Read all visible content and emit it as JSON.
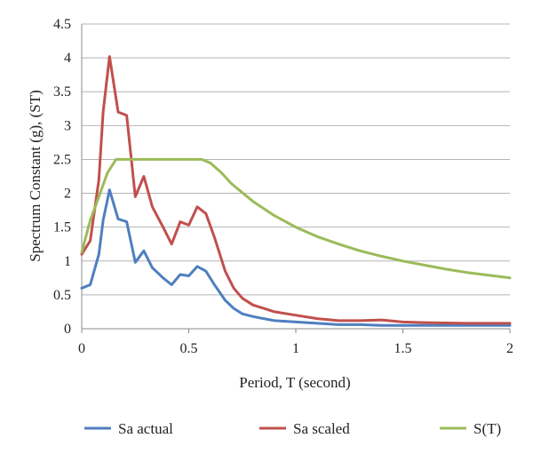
{
  "chart_data": {
    "type": "line",
    "title": "",
    "xlabel": "Period, T (second)",
    "ylabel": "Spectrum Constant (g), (ST)",
    "xlim": [
      0,
      2
    ],
    "ylim": [
      0,
      4.5
    ],
    "xticks": [
      0,
      0.5,
      1,
      1.5,
      2
    ],
    "xtick_labels": [
      "0",
      "0.5",
      "1",
      "1.5",
      "2"
    ],
    "yticks": [
      0,
      0.5,
      1,
      1.5,
      2,
      2.5,
      3,
      3.5,
      4,
      4.5
    ],
    "ytick_labels": [
      "0",
      "0.5",
      "1",
      "1.5",
      "2",
      "2.5",
      "3",
      "3.5",
      "4",
      "4.5"
    ],
    "grid": "horizontal",
    "legend": "bottom",
    "series": [
      {
        "name": "Sa actual",
        "color": "#4f7fbf",
        "x": [
          0,
          0.04,
          0.08,
          0.1,
          0.13,
          0.17,
          0.21,
          0.25,
          0.29,
          0.33,
          0.38,
          0.42,
          0.46,
          0.5,
          0.54,
          0.58,
          0.62,
          0.67,
          0.71,
          0.75,
          0.8,
          0.85,
          0.9,
          1.0,
          1.1,
          1.2,
          1.3,
          1.4,
          1.5,
          1.6,
          1.8,
          2.0
        ],
        "y": [
          0.6,
          0.65,
          1.1,
          1.6,
          2.05,
          1.62,
          1.58,
          0.98,
          1.15,
          0.9,
          0.75,
          0.65,
          0.8,
          0.78,
          0.92,
          0.85,
          0.65,
          0.42,
          0.3,
          0.22,
          0.18,
          0.15,
          0.12,
          0.1,
          0.08,
          0.06,
          0.06,
          0.05,
          0.05,
          0.05,
          0.05,
          0.05
        ]
      },
      {
        "name": "Sa scaled",
        "color": "#c0504d",
        "x": [
          0,
          0.04,
          0.08,
          0.1,
          0.13,
          0.17,
          0.21,
          0.25,
          0.29,
          0.33,
          0.38,
          0.42,
          0.46,
          0.5,
          0.54,
          0.58,
          0.62,
          0.67,
          0.71,
          0.75,
          0.8,
          0.85,
          0.9,
          1.0,
          1.1,
          1.2,
          1.3,
          1.4,
          1.5,
          1.6,
          1.8,
          2.0
        ],
        "y": [
          1.1,
          1.3,
          2.2,
          3.2,
          4.02,
          3.2,
          3.15,
          1.95,
          2.25,
          1.8,
          1.5,
          1.25,
          1.58,
          1.53,
          1.8,
          1.7,
          1.35,
          0.85,
          0.6,
          0.45,
          0.35,
          0.3,
          0.25,
          0.2,
          0.15,
          0.12,
          0.12,
          0.13,
          0.1,
          0.09,
          0.08,
          0.08
        ]
      },
      {
        "name": "S(T)",
        "color": "#9bbb59",
        "x": [
          0,
          0.04,
          0.08,
          0.12,
          0.16,
          0.2,
          0.3,
          0.4,
          0.5,
          0.56,
          0.6,
          0.65,
          0.7,
          0.8,
          0.9,
          1.0,
          1.1,
          1.2,
          1.3,
          1.4,
          1.5,
          1.6,
          1.7,
          1.8,
          1.9,
          2.0
        ],
        "y": [
          1.13,
          1.6,
          1.95,
          2.3,
          2.5,
          2.5,
          2.5,
          2.5,
          2.5,
          2.5,
          2.45,
          2.31,
          2.14,
          1.88,
          1.67,
          1.5,
          1.36,
          1.25,
          1.15,
          1.07,
          1.0,
          0.94,
          0.88,
          0.83,
          0.79,
          0.75
        ]
      }
    ]
  }
}
